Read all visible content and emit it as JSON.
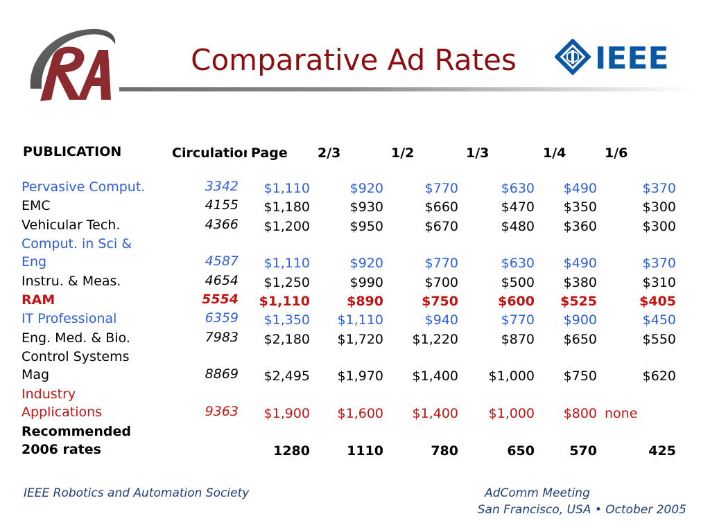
{
  "slide": {
    "title": "Comparative Ad Rates"
  },
  "logos": {
    "left": {
      "icon": "ra-logo-icon",
      "color": "#8b2a2f"
    },
    "right": {
      "icon": "ieee-logo-icon",
      "text": "IEEE",
      "color": "#0a57a4"
    }
  },
  "table": {
    "headers": {
      "publication": "PUBLICATION",
      "circulation": "Circulation",
      "page": "Page",
      "two_thirds": "2/3",
      "half": "1/2",
      "third": "1/3",
      "quarter": "1/4",
      "sixth": "1/6"
    },
    "rows": [
      {
        "pub": [
          "Pervasive Comput."
        ],
        "circ": "3342",
        "page": "$1,110",
        "two_thirds": "$920",
        "half": "$770",
        "third": "$630",
        "quarter": "$490",
        "sixth": "$370",
        "style": "blue"
      },
      {
        "pub": [
          "EMC"
        ],
        "circ": "4155",
        "page": "$1,180",
        "two_thirds": "$930",
        "half": "$660",
        "third": "$470",
        "quarter": "$350",
        "sixth": "$300",
        "style": "black"
      },
      {
        "pub": [
          "Vehicular Tech."
        ],
        "circ": "4366",
        "page": "$1,200",
        "two_thirds": "$950",
        "half": "$670",
        "third": "$480",
        "quarter": "$360",
        "sixth": "$300",
        "style": "black"
      },
      {
        "pub": [
          "Comput. in Sci &",
          "Eng"
        ],
        "circ": "4587",
        "page": "$1,110",
        "two_thirds": "$920",
        "half": "$770",
        "third": "$630",
        "quarter": "$490",
        "sixth": "$370",
        "style": "blue"
      },
      {
        "pub": [
          "Instru. & Meas."
        ],
        "circ": "4654",
        "page": "$1,250",
        "two_thirds": "$990",
        "half": "$700",
        "third": "$500",
        "quarter": "$380",
        "sixth": "$310",
        "style": "black"
      },
      {
        "pub": [
          "RAM"
        ],
        "circ": "5554",
        "page": "$1,110",
        "two_thirds": "$890",
        "half": "$750",
        "third": "$600",
        "quarter": "$525",
        "sixth": "$405",
        "style": "ram"
      },
      {
        "pub": [
          "IT Professional"
        ],
        "circ": "6359",
        "page": "$1,350",
        "two_thirds": "$1,110",
        "half": "$940",
        "third": "$770",
        "quarter": "$900",
        "sixth": "$450",
        "style": "blue"
      },
      {
        "pub": [
          "Eng. Med. & Bio."
        ],
        "circ": "7983",
        "page": "$2,180",
        "two_thirds": "$1,720",
        "half": "$1,220",
        "third": "$870",
        "quarter": "$650",
        "sixth": "$550",
        "style": "black"
      },
      {
        "pub": [
          "Control Systems",
          "Mag"
        ],
        "circ": "8869",
        "page": "$2,495",
        "two_thirds": "$1,970",
        "half": "$1,400",
        "third": "$1,000",
        "quarter": "$750",
        "sixth": "$620",
        "style": "black"
      },
      {
        "pub": [
          "Industry",
          "Applications"
        ],
        "circ": "9363",
        "page": "$1,900",
        "two_thirds": "$1,600",
        "half": "$1,400",
        "third": "$1,000",
        "quarter": "$800",
        "sixth": "none",
        "style": "red"
      },
      {
        "pub": [
          "Recommended",
          "2006 rates"
        ],
        "circ": "",
        "page": "1280",
        "two_thirds": "1110",
        "half": "780",
        "third": "650",
        "quarter": "570",
        "sixth": "425",
        "style": "rec"
      }
    ]
  },
  "footer": {
    "left": "IEEE Robotics and Automation Society",
    "right_line1": "AdComm Meeting",
    "right_line2": "San Francisco, USA • October  2005"
  }
}
